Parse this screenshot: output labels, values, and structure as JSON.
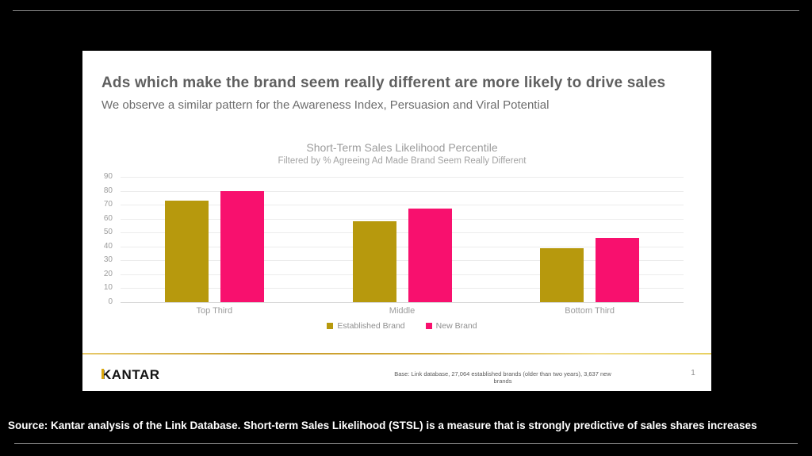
{
  "slide": {
    "title": "Ads which make the brand seem really different are more likely to drive sales",
    "subtitle": "We observe a similar pattern for the Awareness Index, Persuasion and Viral Potential",
    "footer": {
      "logo": "KANTAR",
      "base_note": "Base: Link database, 27,064 established brands (older than two years), 3,637 new brands",
      "page_number": "1"
    }
  },
  "chart_data": {
    "type": "bar",
    "title": "Short-Term Sales Likelihood Percentile",
    "subtitle": "Filtered by % Agreeing Ad Made Brand Seem Really Different",
    "categories": [
      "Top Third",
      "Middle",
      "Bottom Third"
    ],
    "series": [
      {
        "name": "Established Brand",
        "color": "#b7990d",
        "values": [
          73,
          58,
          39
        ]
      },
      {
        "name": "New Brand",
        "color": "#f8106e",
        "values": [
          80,
          67,
          46
        ]
      }
    ],
    "ylim": [
      0,
      90
    ],
    "ytick_step": 10,
    "grid": true,
    "legend_position": "bottom"
  },
  "caption": "Source: Kantar analysis of the Link Database. Short-term Sales Likelihood (STSL) is a measure that is strongly predictive of sales shares increases",
  "colors": {
    "established_brand": "#b7990d",
    "new_brand": "#f8106e",
    "accent_gold_line": "#c79a28"
  }
}
